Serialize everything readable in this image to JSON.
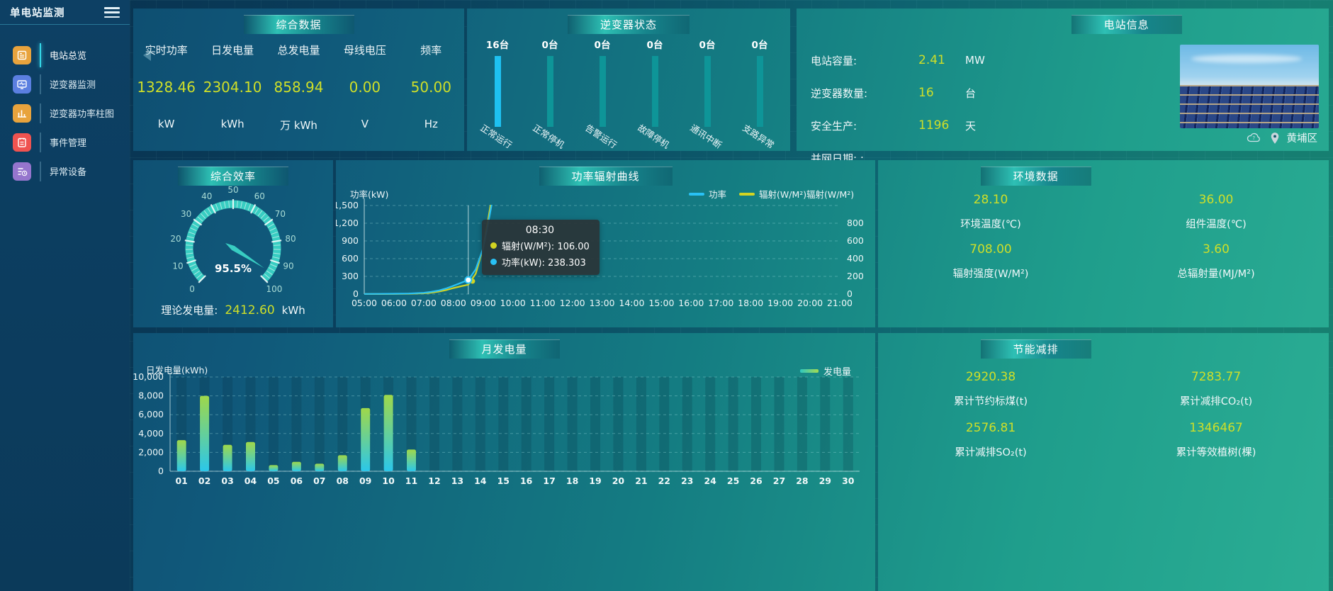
{
  "app": {
    "title": "单电站监测"
  },
  "sidebar": {
    "items": [
      {
        "label": "电站总览",
        "icon": "overview-icon",
        "color": "#e8a33d",
        "active": true
      },
      {
        "label": "逆变器监测",
        "icon": "inverter-monitor-icon",
        "color": "#5b7fe0",
        "active": false
      },
      {
        "label": "逆变器功率柱图",
        "icon": "power-bars-icon",
        "color": "#e8a33d",
        "active": false
      },
      {
        "label": "事件管理",
        "icon": "event-icon",
        "color": "#ef5350",
        "active": false
      },
      {
        "label": "异常设备",
        "icon": "abnormal-icon",
        "color": "#9575cd",
        "active": false
      }
    ]
  },
  "summary": {
    "title": "综合数据",
    "metrics": [
      {
        "label": "实时功率",
        "value": "1328.46",
        "unit": "kW"
      },
      {
        "label": "日发电量",
        "value": "2304.10",
        "unit": "kWh"
      },
      {
        "label": "总发电量",
        "value": "858.94",
        "unit": "万 kWh"
      },
      {
        "label": "母线电压",
        "value": "0.00",
        "unit": "V"
      },
      {
        "label": "频率",
        "value": "50.00",
        "unit": "Hz"
      }
    ]
  },
  "inverter_status": {
    "title": "逆变器状态",
    "bars": [
      {
        "count": "16台",
        "label": "正常运行",
        "highlight": true
      },
      {
        "count": "0台",
        "label": "正常停机",
        "highlight": false
      },
      {
        "count": "0台",
        "label": "告警运行",
        "highlight": false
      },
      {
        "count": "0台",
        "label": "故障停机",
        "highlight": false
      },
      {
        "count": "0台",
        "label": "通讯中断",
        "highlight": false
      },
      {
        "count": "0台",
        "label": "支路异常",
        "highlight": false
      }
    ]
  },
  "station_info": {
    "title": "电站信息",
    "rows": [
      {
        "label": "电站容量:",
        "value": "2.41",
        "unit": "MW"
      },
      {
        "label": "逆变器数量:",
        "value": "16",
        "unit": "台"
      },
      {
        "label": "安全生产:",
        "value": "1196",
        "unit": "天"
      },
      {
        "label": "并网日期: :",
        "value": "",
        "unit": ""
      }
    ],
    "location": "黄埔区"
  },
  "efficiency": {
    "title": "综合效率",
    "theory_label": "理论发电量:",
    "theory_value": "2412.60",
    "theory_unit": "kWh"
  },
  "env": {
    "title": "环境数据",
    "cells": [
      {
        "value": "28.10",
        "label": "环境温度(℃)"
      },
      {
        "value": "36.00",
        "label": "组件温度(℃)"
      },
      {
        "value": "708.00",
        "label": "辐射强度(W/M²)"
      },
      {
        "value": "3.60",
        "label": "总辐射量(MJ/M²)"
      }
    ]
  },
  "saving": {
    "title": "节能减排",
    "cells": [
      {
        "value": "2920.38",
        "label": "累计节约标煤(t)"
      },
      {
        "value": "7283.77",
        "label": "累计减排CO₂(t)"
      },
      {
        "value": "2576.81",
        "label": "累计减排SO₂(t)"
      },
      {
        "value": "1346467",
        "label": "累计等效植树(棵)"
      }
    ]
  },
  "tooltip": {
    "time": "08:30",
    "items": [
      {
        "color": "#d3d422",
        "text": "辐射(W/M²): 106.00"
      },
      {
        "color": "#29c1f5",
        "text": "功率(kW): 238.303"
      }
    ]
  },
  "chart_data": [
    {
      "id": "power-radiation-curve",
      "type": "line",
      "title": "功率辐射曲线",
      "x_labels": [
        "05:00",
        "06:00",
        "07:00",
        "08:00",
        "09:00",
        "10:00",
        "11:00",
        "12:00",
        "13:00",
        "14:00",
        "15:00",
        "16:00",
        "17:00",
        "18:00",
        "19:00",
        "20:00",
        "21:00"
      ],
      "x_range": [
        5,
        21
      ],
      "x_hours": [
        5,
        5.5,
        6,
        6.5,
        7,
        7.25,
        7.5,
        7.75,
        8,
        8.25,
        8.5,
        8.75,
        9,
        9.17,
        9.3,
        9.45
      ],
      "series": [
        {
          "name": "功率",
          "color": "#29c1f5",
          "axis": "left",
          "values": [
            3,
            4,
            6,
            10,
            22,
            38,
            60,
            95,
            140,
            190,
            238.303,
            420,
            780,
            1200,
            1550,
            1900
          ]
        },
        {
          "name": "辐射(W/M²)",
          "color": "#d3d422",
          "axis": "right",
          "values": [
            1,
            1,
            2,
            4,
            9,
            16,
            28,
            45,
            68,
            88,
            106,
            230,
            520,
            850,
            1100,
            1300
          ]
        }
      ],
      "left_axis": {
        "title": "功率(kW)",
        "ticks": [
          "0",
          "300",
          "600",
          "900",
          "1,200",
          "1,500"
        ],
        "max": 1500
      },
      "right_axis": {
        "title": "辐射(W/M²)",
        "ticks": [
          "0",
          "200",
          "400",
          "600",
          "800"
        ],
        "max": 1000
      },
      "crosshair_hour": 8.5,
      "legend_position": "top-right",
      "grid": "dashed"
    },
    {
      "id": "monthly-energy",
      "type": "bar",
      "title": "月发电量",
      "ylabel": "日发电量(kWh)",
      "legend": "发电量",
      "categories": [
        "01",
        "02",
        "03",
        "04",
        "05",
        "06",
        "07",
        "08",
        "09",
        "10",
        "11",
        "12",
        "13",
        "14",
        "15",
        "16",
        "17",
        "18",
        "19",
        "20",
        "21",
        "22",
        "23",
        "24",
        "25",
        "26",
        "27",
        "28",
        "29",
        "30"
      ],
      "values": [
        3300,
        8000,
        2800,
        3100,
        650,
        1000,
        800,
        1700,
        6700,
        8100,
        2300,
        0,
        0,
        0,
        0,
        0,
        0,
        0,
        0,
        0,
        0,
        0,
        0,
        0,
        0,
        0,
        0,
        0,
        0,
        0
      ],
      "yticks": [
        "0",
        "2,000",
        "4,000",
        "6,000",
        "8,000",
        "10,000"
      ],
      "ymax": 10000,
      "bar_gradient": [
        "#2bc7ea",
        "#9fd84a"
      ],
      "grid": "dashed"
    },
    {
      "id": "efficiency-gauge",
      "type": "gauge",
      "title": "综合效率",
      "min": 0,
      "max": 100,
      "value": 95.5,
      "display": "95.5%",
      "tick_labels": [
        "0",
        "10",
        "20",
        "30",
        "40",
        "50",
        "60",
        "70",
        "80",
        "90",
        "100"
      ],
      "color": "#38cdc2"
    }
  ]
}
